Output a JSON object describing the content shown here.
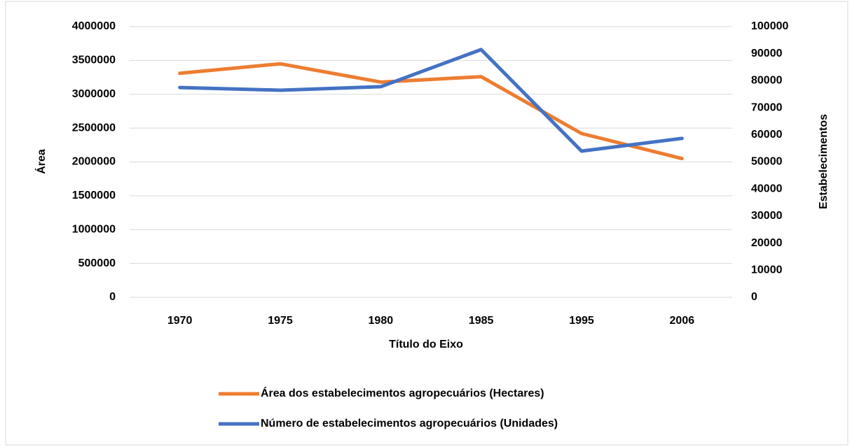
{
  "chart_data": {
    "type": "line",
    "categories": [
      "1970",
      "1975",
      "1980",
      "1985",
      "1995",
      "2006"
    ],
    "xlabel": "Título do Eixo",
    "ylabel": "Área",
    "y2label": "Estabelecimentos",
    "series": [
      {
        "name": "Área dos estabelecimentos agropecuários (Hectares)",
        "color": "#ed7d31",
        "values": [
          3310000,
          3450000,
          3180000,
          3260000,
          2420000,
          2050000
        ]
      },
      {
        "name": "Número de estabelecimentos agropecuários (Unidades)",
        "color": "#4472c4",
        "axis": "y2",
        "values": [
          77500,
          76500,
          77800,
          91500,
          54000,
          58700
        ]
      }
    ],
    "ylim": [
      0,
      4000000
    ],
    "yticks": [
      0,
      500000,
      1000000,
      1500000,
      2000000,
      2500000,
      3000000,
      3500000,
      4000000
    ],
    "y2lim": [
      0,
      100000
    ],
    "y2ticks": [
      0,
      10000,
      20000,
      30000,
      40000,
      50000,
      60000,
      70000,
      80000,
      90000,
      100000
    ],
    "grid": true,
    "legend": "bottom"
  }
}
